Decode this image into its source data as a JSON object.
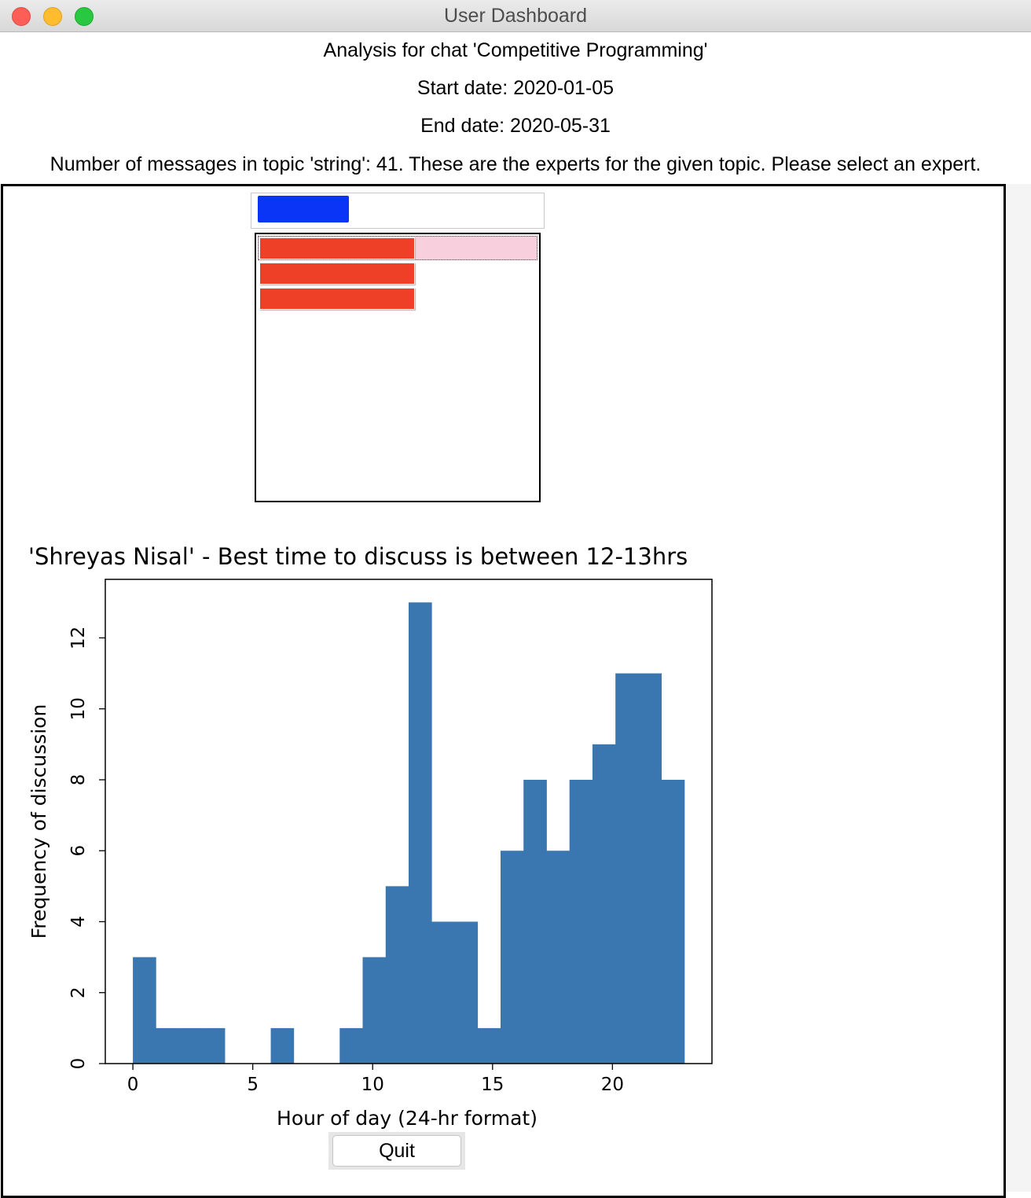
{
  "window": {
    "title": "User Dashboard"
  },
  "header": {
    "chat_line": "Analysis for chat 'Competitive Programming'",
    "start_line": "Start date: 2020-01-05",
    "end_line": "End date: 2020-05-31",
    "topic_line": "Number of messages in topic 'string': 41. These are the experts for the given topic. Please select an expert."
  },
  "colors": {
    "top_button": "#0a35f7",
    "expert_buttons": "#ee4027",
    "selected_row": "#f8cfdc",
    "bars": "#3a76b0"
  },
  "expert_list": {
    "rows": 3,
    "selected_index": 0
  },
  "chart_data": {
    "type": "bar",
    "title": "'Shreyas Nisal' - Best time to discuss is between 12-13hrs",
    "xlabel": "Hour of day (24-hr format)",
    "ylabel": "Frequency of discussion",
    "x": [
      0,
      0.958,
      1.917,
      2.875,
      3.833,
      4.792,
      5.75,
      6.708,
      7.667,
      8.625,
      9.583,
      10.542,
      11.5,
      12.458,
      13.417,
      14.375,
      15.333,
      16.292,
      17.25,
      18.208,
      19.167,
      20.125,
      21.083,
      22.042
    ],
    "bin_width": 0.958,
    "values": [
      3,
      1,
      1,
      1,
      0,
      0,
      1,
      0,
      0,
      1,
      3,
      5,
      13,
      4,
      4,
      1,
      6,
      8,
      6,
      8,
      9,
      11,
      11,
      8
    ],
    "xlim": [
      -1.15,
      24.15
    ],
    "ylim": [
      0,
      13.65
    ],
    "xticks": [
      0,
      5,
      10,
      15,
      20
    ],
    "yticks": [
      0,
      2,
      4,
      6,
      8,
      10,
      12
    ],
    "grid": false
  },
  "footer": {
    "quit_label": "Quit"
  }
}
